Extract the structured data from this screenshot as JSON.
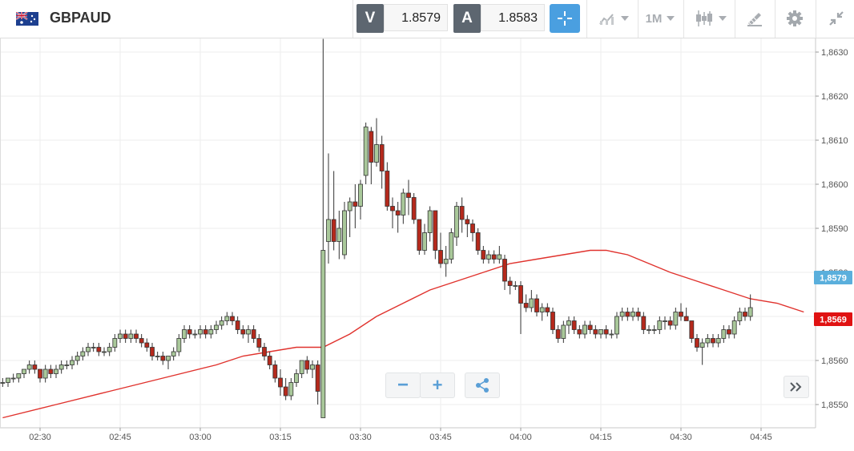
{
  "header": {
    "symbol": "GBPAUD",
    "bid": {
      "tag": "V",
      "value": "1.8579"
    },
    "ask": {
      "tag": "A",
      "value": "1.8583"
    },
    "timeframe": "1M",
    "icons": [
      "flag-icon",
      "crosshair-icon",
      "line-chart-icon",
      "candlestick-icon",
      "drawing-tool-icon",
      "gear-icon",
      "collapse-icon"
    ]
  },
  "controls": {
    "zoom_out": "−",
    "zoom_in": "+",
    "share_icon": "share-icon",
    "scroll_icon": "double-chevron-right-icon"
  },
  "colors": {
    "up": "#a9c89a",
    "down": "#b5291c",
    "ma": "#e0322d",
    "bid_badge": "#5aafdc",
    "ma_badge": "#e01212",
    "accent": "#4a9fe0"
  },
  "chart_data": {
    "type": "candlestick",
    "interval": "1M",
    "price_badges": {
      "bid": "1,8579",
      "ma": "1,8569"
    },
    "y_ticks": [
      "1,8550",
      "1,8560",
      "1,8570",
      "1,8580",
      "1,8590",
      "1,8600",
      "1,8610",
      "1,8620",
      "1,8630"
    ],
    "y_range": [
      1.8546,
      1.8636
    ],
    "x_ticks": [
      "02:30",
      "02:45",
      "03:00",
      "03:15",
      "03:30",
      "03:45",
      "04:00",
      "04:15",
      "04:30",
      "04:45"
    ],
    "x_range_minutes": [
      "02:22",
      "04:53"
    ],
    "start_time": "02:23",
    "candles": [
      [
        1.8555,
        1.8556,
        1.8554,
        1.8555
      ],
      [
        1.8555,
        1.8556,
        1.8554,
        1.8556
      ],
      [
        1.8556,
        1.8557,
        1.8555,
        1.8556
      ],
      [
        1.8556,
        1.8557,
        1.8555,
        1.8557
      ],
      [
        1.8557,
        1.8558,
        1.8556,
        1.8558
      ],
      [
        1.8558,
        1.856,
        1.8557,
        1.8559
      ],
      [
        1.8559,
        1.856,
        1.8557,
        1.8558
      ],
      [
        1.8558,
        1.8558,
        1.8555,
        1.8556
      ],
      [
        1.8556,
        1.8559,
        1.8555,
        1.8558
      ],
      [
        1.8558,
        1.8559,
        1.8556,
        1.8557
      ],
      [
        1.8557,
        1.8559,
        1.8556,
        1.8558
      ],
      [
        1.8558,
        1.856,
        1.8557,
        1.8559
      ],
      [
        1.8559,
        1.856,
        1.8558,
        1.8559
      ],
      [
        1.8559,
        1.8561,
        1.8558,
        1.856
      ],
      [
        1.856,
        1.8562,
        1.8559,
        1.8561
      ],
      [
        1.8561,
        1.8563,
        1.856,
        1.8562
      ],
      [
        1.8562,
        1.8564,
        1.8561,
        1.8563
      ],
      [
        1.8563,
        1.8564,
        1.8562,
        1.8563
      ],
      [
        1.8563,
        1.8564,
        1.8561,
        1.8562
      ],
      [
        1.8562,
        1.8563,
        1.8561,
        1.8562
      ],
      [
        1.8562,
        1.8564,
        1.8561,
        1.8563
      ],
      [
        1.8563,
        1.8566,
        1.8562,
        1.8565
      ],
      [
        1.8565,
        1.8567,
        1.8564,
        1.8566
      ],
      [
        1.8566,
        1.8567,
        1.8564,
        1.8565
      ],
      [
        1.8565,
        1.8567,
        1.8564,
        1.8566
      ],
      [
        1.8566,
        1.8567,
        1.8564,
        1.8565
      ],
      [
        1.8565,
        1.8566,
        1.8563,
        1.8564
      ],
      [
        1.8564,
        1.8565,
        1.8562,
        1.8563
      ],
      [
        1.8563,
        1.8564,
        1.856,
        1.8561
      ],
      [
        1.8561,
        1.8562,
        1.856,
        1.8561
      ],
      [
        1.8561,
        1.8562,
        1.8559,
        1.856
      ],
      [
        1.856,
        1.8561,
        1.8558,
        1.8561
      ],
      [
        1.8561,
        1.8563,
        1.856,
        1.8562
      ],
      [
        1.8562,
        1.8566,
        1.8561,
        1.8565
      ],
      [
        1.8565,
        1.8568,
        1.8564,
        1.8567
      ],
      [
        1.8567,
        1.8568,
        1.8565,
        1.8566
      ],
      [
        1.8566,
        1.8567,
        1.8565,
        1.8566
      ],
      [
        1.8566,
        1.8568,
        1.8565,
        1.8567
      ],
      [
        1.8567,
        1.8568,
        1.8565,
        1.8566
      ],
      [
        1.8566,
        1.8568,
        1.8565,
        1.8567
      ],
      [
        1.8567,
        1.8569,
        1.8566,
        1.8568
      ],
      [
        1.8568,
        1.857,
        1.8567,
        1.8569
      ],
      [
        1.8569,
        1.8571,
        1.8568,
        1.857
      ],
      [
        1.857,
        1.8571,
        1.8568,
        1.8569
      ],
      [
        1.8569,
        1.857,
        1.8566,
        1.8567
      ],
      [
        1.8567,
        1.8568,
        1.8565,
        1.8566
      ],
      [
        1.8566,
        1.8568,
        1.8564,
        1.8567
      ],
      [
        1.8567,
        1.8568,
        1.8564,
        1.8565
      ],
      [
        1.8565,
        1.8566,
        1.8562,
        1.8563
      ],
      [
        1.8563,
        1.8564,
        1.856,
        1.8561
      ],
      [
        1.8561,
        1.8562,
        1.8558,
        1.8559
      ],
      [
        1.8559,
        1.856,
        1.8555,
        1.8556
      ],
      [
        1.8556,
        1.8558,
        1.8552,
        1.8554
      ],
      [
        1.8554,
        1.8556,
        1.8551,
        1.8552
      ],
      [
        1.8552,
        1.8556,
        1.8551,
        1.8555
      ],
      [
        1.8555,
        1.8558,
        1.8554,
        1.8557
      ],
      [
        1.8557,
        1.856,
        1.8556,
        1.856
      ],
      [
        1.856,
        1.8561,
        1.8557,
        1.8558
      ],
      [
        1.8558,
        1.856,
        1.8556,
        1.8559
      ],
      [
        1.8559,
        1.856,
        1.855,
        1.8553
      ],
      [
        1.8547,
        1.8633,
        1.8547,
        1.8585
      ],
      [
        1.8587,
        1.8607,
        1.8582,
        1.8592
      ],
      [
        1.8592,
        1.8603,
        1.8585,
        1.8587
      ],
      [
        1.8587,
        1.8594,
        1.8583,
        1.859
      ],
      [
        1.8584,
        1.8596,
        1.8583,
        1.8594
      ],
      [
        1.8594,
        1.8597,
        1.8588,
        1.8596
      ],
      [
        1.8596,
        1.86,
        1.859,
        1.8595
      ],
      [
        1.8595,
        1.8601,
        1.8592,
        1.86
      ],
      [
        1.8602,
        1.8614,
        1.86,
        1.8613
      ],
      [
        1.8612,
        1.8613,
        1.86,
        1.8605
      ],
      [
        1.8605,
        1.8615,
        1.8604,
        1.8609
      ],
      [
        1.8609,
        1.8611,
        1.8599,
        1.8603
      ],
      [
        1.8603,
        1.8605,
        1.8594,
        1.8595
      ],
      [
        1.8595,
        1.8597,
        1.859,
        1.8594
      ],
      [
        1.8594,
        1.8596,
        1.8589,
        1.8593
      ],
      [
        1.8593,
        1.8599,
        1.8591,
        1.8598
      ],
      [
        1.8598,
        1.8601,
        1.8593,
        1.8597
      ],
      [
        1.8597,
        1.8598,
        1.8591,
        1.8592
      ],
      [
        1.8592,
        1.8592,
        1.8584,
        1.8585
      ],
      [
        1.8585,
        1.8591,
        1.8584,
        1.8589
      ],
      [
        1.8589,
        1.8595,
        1.8587,
        1.8594
      ],
      [
        1.8594,
        1.8594,
        1.8583,
        1.8585
      ],
      [
        1.8585,
        1.8589,
        1.8581,
        1.8582
      ],
      [
        1.8582,
        1.8586,
        1.8579,
        1.8583
      ],
      [
        1.8583,
        1.859,
        1.8582,
        1.8589
      ],
      [
        1.8588,
        1.8596,
        1.8586,
        1.8595
      ],
      [
        1.8595,
        1.8597,
        1.8589,
        1.8592
      ],
      [
        1.8592,
        1.8593,
        1.8588,
        1.8591
      ],
      [
        1.8591,
        1.8592,
        1.8587,
        1.8589
      ],
      [
        1.8589,
        1.859,
        1.8584,
        1.8585
      ],
      [
        1.8585,
        1.8586,
        1.8582,
        1.8583
      ],
      [
        1.8583,
        1.8585,
        1.8582,
        1.8584
      ],
      [
        1.8584,
        1.8585,
        1.8582,
        1.8583
      ],
      [
        1.8583,
        1.8586,
        1.8582,
        1.8584
      ],
      [
        1.8583,
        1.8584,
        1.8576,
        1.8578
      ],
      [
        1.8578,
        1.8579,
        1.8575,
        1.8577
      ],
      [
        1.8577,
        1.8578,
        1.8576,
        1.8577
      ],
      [
        1.8577,
        1.8578,
        1.8566,
        1.8573
      ],
      [
        1.8573,
        1.8575,
        1.8571,
        1.8572
      ],
      [
        1.8572,
        1.8576,
        1.8571,
        1.8574
      ],
      [
        1.8574,
        1.8575,
        1.857,
        1.8571
      ],
      [
        1.8571,
        1.8573,
        1.8569,
        1.8572
      ],
      [
        1.8572,
        1.8573,
        1.857,
        1.8571
      ],
      [
        1.8571,
        1.8572,
        1.8566,
        1.8567
      ],
      [
        1.8567,
        1.8568,
        1.8564,
        1.8565
      ],
      [
        1.8565,
        1.8569,
        1.8564,
        1.8568
      ],
      [
        1.8568,
        1.857,
        1.8566,
        1.8569
      ],
      [
        1.8569,
        1.857,
        1.8566,
        1.8567
      ],
      [
        1.8567,
        1.8568,
        1.8565,
        1.8566
      ],
      [
        1.8566,
        1.8569,
        1.8565,
        1.8568
      ],
      [
        1.8568,
        1.8569,
        1.8566,
        1.8567
      ],
      [
        1.8567,
        1.8568,
        1.8565,
        1.8566
      ],
      [
        1.8566,
        1.8567,
        1.8565,
        1.8567
      ],
      [
        1.8567,
        1.8568,
        1.8565,
        1.8566
      ],
      [
        1.8566,
        1.8567,
        1.8565,
        1.8566
      ],
      [
        1.8566,
        1.8571,
        1.8565,
        1.857
      ],
      [
        1.857,
        1.8572,
        1.8569,
        1.8571
      ],
      [
        1.8571,
        1.8572,
        1.8569,
        1.857
      ],
      [
        1.857,
        1.8572,
        1.8569,
        1.8571
      ],
      [
        1.8571,
        1.8572,
        1.8569,
        1.857
      ],
      [
        1.857,
        1.8571,
        1.8566,
        1.8567
      ],
      [
        1.8567,
        1.8568,
        1.8566,
        1.8567
      ],
      [
        1.8567,
        1.8568,
        1.8566,
        1.8567
      ],
      [
        1.8567,
        1.857,
        1.8566,
        1.8569
      ],
      [
        1.8569,
        1.857,
        1.8567,
        1.8569
      ],
      [
        1.8569,
        1.857,
        1.8567,
        1.8568
      ],
      [
        1.8568,
        1.8572,
        1.8567,
        1.8571
      ],
      [
        1.8571,
        1.8573,
        1.8569,
        1.857
      ],
      [
        1.857,
        1.8572,
        1.8569,
        1.8569
      ],
      [
        1.8569,
        1.8569,
        1.8564,
        1.8565
      ],
      [
        1.8565,
        1.8566,
        1.8562,
        1.8563
      ],
      [
        1.8563,
        1.8565,
        1.8559,
        1.8564
      ],
      [
        1.8564,
        1.8566,
        1.8563,
        1.8565
      ],
      [
        1.8565,
        1.8566,
        1.8563,
        1.8564
      ],
      [
        1.8564,
        1.8566,
        1.8563,
        1.8565
      ],
      [
        1.8565,
        1.8568,
        1.8564,
        1.8567
      ],
      [
        1.8567,
        1.8568,
        1.8565,
        1.8566
      ],
      [
        1.8566,
        1.857,
        1.8565,
        1.8569
      ],
      [
        1.8569,
        1.8572,
        1.8568,
        1.8571
      ],
      [
        1.8571,
        1.8572,
        1.8569,
        1.857
      ],
      [
        1.857,
        1.8575,
        1.8569,
        1.8572
      ]
    ],
    "ma_series": [
      [
        0,
        1.8547
      ],
      [
        10,
        1.855
      ],
      [
        20,
        1.8553
      ],
      [
        30,
        1.8556
      ],
      [
        40,
        1.8559
      ],
      [
        45,
        1.8561
      ],
      [
        50,
        1.8562
      ],
      [
        55,
        1.8563
      ],
      [
        60,
        1.8563
      ],
      [
        65,
        1.8566
      ],
      [
        70,
        1.857
      ],
      [
        75,
        1.8573
      ],
      [
        80,
        1.8576
      ],
      [
        85,
        1.8578
      ],
      [
        90,
        1.858
      ],
      [
        95,
        1.8582
      ],
      [
        100,
        1.8583
      ],
      [
        105,
        1.8584
      ],
      [
        110,
        1.8585
      ],
      [
        113,
        1.8585
      ],
      [
        117,
        1.8584
      ],
      [
        121,
        1.8582
      ],
      [
        125,
        1.858
      ],
      [
        130,
        1.8578
      ],
      [
        135,
        1.8576
      ],
      [
        140,
        1.8574
      ],
      [
        145,
        1.8573
      ],
      [
        150,
        1.8571
      ]
    ]
  }
}
